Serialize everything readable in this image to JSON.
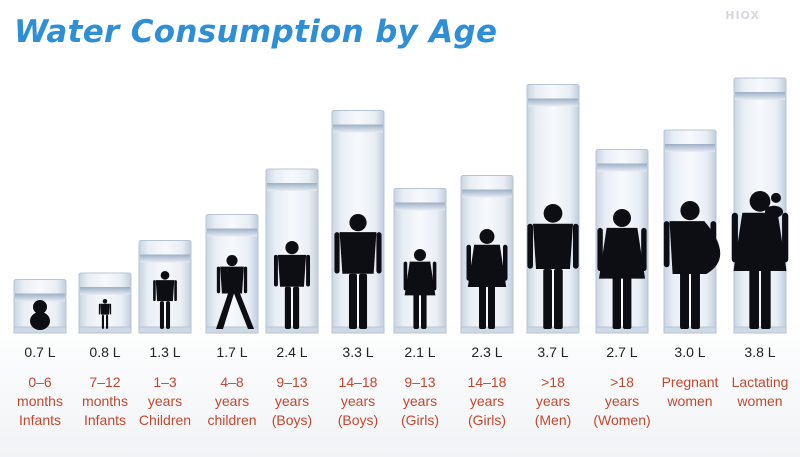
{
  "header": {
    "title": "Water Consumption by Age",
    "brand": "HIOX"
  },
  "chart_data": {
    "type": "bar",
    "title": "Water Consumption by Age",
    "unit": "L",
    "categories": [
      [
        "0–6",
        "months",
        "Infants"
      ],
      [
        "7–12",
        "months",
        "Infants"
      ],
      [
        "1–3",
        "years",
        "Children"
      ],
      [
        "4–8",
        "years",
        "children"
      ],
      [
        "9–13",
        "years",
        "(Boys)"
      ],
      [
        "14–18",
        "years",
        "(Boys)"
      ],
      [
        "9–13",
        "years",
        "(Girls)"
      ],
      [
        "14–18",
        "years",
        "(Girls)"
      ],
      [
        ">18",
        "years",
        "(Men)"
      ],
      [
        ">18",
        "years",
        "(Women)"
      ],
      [
        "Pregnant",
        "women"
      ],
      [
        "Lactating",
        "women"
      ]
    ],
    "values": [
      0.7,
      0.8,
      1.3,
      1.7,
      2.4,
      3.3,
      2.1,
      2.3,
      3.7,
      2.7,
      3.0,
      3.8
    ],
    "value_labels": [
      "0.7 L",
      "0.8 L",
      "1.3 L",
      "1.7 L",
      "2.4 L",
      "3.3 L",
      "2.1 L",
      "2.3 L",
      "3.7 L",
      "2.7 L",
      "3.0 L",
      "3.8 L"
    ],
    "figures": [
      "infant-sitting",
      "toddler",
      "child",
      "child-running",
      "boy",
      "teen-boy",
      "girl",
      "teen-girl",
      "man",
      "woman",
      "pregnant-woman",
      "mother-holding-baby"
    ],
    "ylim": [
      0,
      4.2
    ],
    "colors": {
      "title": "#2f8fd6",
      "category_text": "#c7472e",
      "value_text": "#222222",
      "water": "#dfe7f1",
      "glass_edge": "#b7c4d4"
    }
  }
}
